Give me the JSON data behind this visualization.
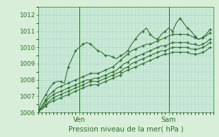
{
  "xlabel": "Pression niveau de la mer( hPa )",
  "bg_color": "#d8eed8",
  "plot_bg_color": "#c8e8d8",
  "grid_color": "#b0d4b8",
  "line_color": "#2d6e2d",
  "ylim": [
    1006,
    1012.5
  ],
  "xlim": [
    0,
    47
  ],
  "yticks": [
    1006,
    1007,
    1008,
    1009,
    1010,
    1011,
    1012
  ],
  "xtick_positions": [
    11,
    35
  ],
  "xtick_labels": [
    "Ven",
    "Sam"
  ],
  "vline_positions": [
    11,
    35
  ],
  "series": [
    [
      1006.2,
      1006.7,
      1007.1,
      1007.5,
      1007.8,
      1007.9,
      1007.9,
      1007.8,
      1008.8,
      1009.3,
      1009.8,
      1010.0,
      1010.2,
      1010.3,
      1010.2,
      1010.0,
      1009.8,
      1009.7,
      1009.5,
      1009.5,
      1009.4,
      1009.3,
      1009.5,
      1009.6,
      1009.8,
      1010.2,
      1010.5,
      1010.8,
      1011.0,
      1011.2,
      1010.8,
      1010.6,
      1010.5,
      1010.8,
      1011.0,
      1011.2,
      1011.0,
      1011.5,
      1011.8,
      1011.5,
      1011.2,
      1011.0,
      1010.7,
      1010.5,
      1010.6,
      1010.8,
      1011.1
    ],
    [
      1006.1,
      1006.4,
      1006.8,
      1007.1,
      1007.3,
      1007.5,
      1007.6,
      1007.7,
      1007.8,
      1007.9,
      1008.0,
      1008.1,
      1008.2,
      1008.3,
      1008.4,
      1008.4,
      1008.4,
      1008.5,
      1008.6,
      1008.7,
      1008.8,
      1009.0,
      1009.2,
      1009.4,
      1009.6,
      1009.8,
      1009.9,
      1010.0,
      1010.1,
      1010.2,
      1010.2,
      1010.3,
      1010.4,
      1010.5,
      1010.6,
      1010.7,
      1010.8,
      1010.8,
      1010.8,
      1010.8,
      1010.8,
      1010.7,
      1010.6,
      1010.5,
      1010.6,
      1010.7,
      1010.9
    ],
    [
      1006.1,
      1006.3,
      1006.7,
      1006.9,
      1007.1,
      1007.2,
      1007.3,
      1007.4,
      1007.5,
      1007.6,
      1007.7,
      1007.8,
      1007.9,
      1008.0,
      1008.0,
      1008.1,
      1008.1,
      1008.2,
      1008.3,
      1008.4,
      1008.5,
      1008.6,
      1008.8,
      1009.0,
      1009.1,
      1009.3,
      1009.4,
      1009.5,
      1009.6,
      1009.7,
      1009.8,
      1009.9,
      1010.0,
      1010.1,
      1010.1,
      1010.2,
      1010.3,
      1010.3,
      1010.3,
      1010.3,
      1010.3,
      1010.2,
      1010.2,
      1010.1,
      1010.2,
      1010.3,
      1010.5
    ],
    [
      1006.1,
      1006.2,
      1006.5,
      1006.7,
      1006.9,
      1007.0,
      1007.1,
      1007.2,
      1007.3,
      1007.4,
      1007.5,
      1007.6,
      1007.7,
      1007.8,
      1007.9,
      1007.9,
      1007.9,
      1008.0,
      1008.1,
      1008.2,
      1008.3,
      1008.4,
      1008.5,
      1008.7,
      1008.8,
      1009.0,
      1009.1,
      1009.2,
      1009.3,
      1009.4,
      1009.5,
      1009.6,
      1009.7,
      1009.8,
      1009.8,
      1009.9,
      1010.0,
      1010.0,
      1010.0,
      1010.0,
      1010.0,
      1009.9,
      1009.9,
      1009.9,
      1010.0,
      1010.1,
      1010.3
    ],
    [
      1006.1,
      1006.2,
      1006.4,
      1006.6,
      1006.7,
      1006.8,
      1006.9,
      1007.0,
      1007.1,
      1007.2,
      1007.3,
      1007.4,
      1007.5,
      1007.6,
      1007.7,
      1007.7,
      1007.7,
      1007.8,
      1007.9,
      1008.0,
      1008.1,
      1008.2,
      1008.3,
      1008.5,
      1008.6,
      1008.7,
      1008.8,
      1008.9,
      1009.0,
      1009.1,
      1009.2,
      1009.3,
      1009.4,
      1009.5,
      1009.6,
      1009.6,
      1009.7,
      1009.7,
      1009.7,
      1009.7,
      1009.7,
      1009.6,
      1009.6,
      1009.6,
      1009.7,
      1009.8,
      1010.0
    ]
  ]
}
